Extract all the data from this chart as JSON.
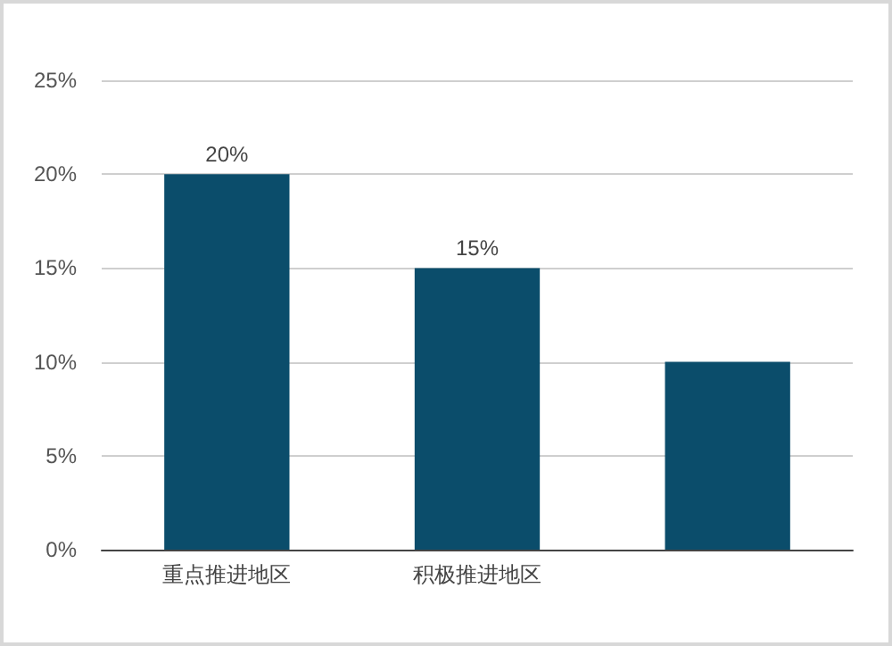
{
  "chart_data": {
    "type": "bar",
    "categories": [
      "重点推进地区",
      "积极推进地区",
      null
    ],
    "values": [
      20,
      15,
      10
    ],
    "value_labels": [
      "20%",
      "15%",
      null
    ],
    "color": "#0b4d6b",
    "ylim": [
      0,
      25
    ],
    "yticks": [
      {
        "value": 0,
        "label": "0%"
      },
      {
        "value": 5,
        "label": "5%"
      },
      {
        "value": 10,
        "label": "10%"
      },
      {
        "value": 15,
        "label": "15%"
      },
      {
        "value": 20,
        "label": "20%"
      },
      {
        "value": 25,
        "label": "25%"
      }
    ],
    "grid": "y"
  }
}
